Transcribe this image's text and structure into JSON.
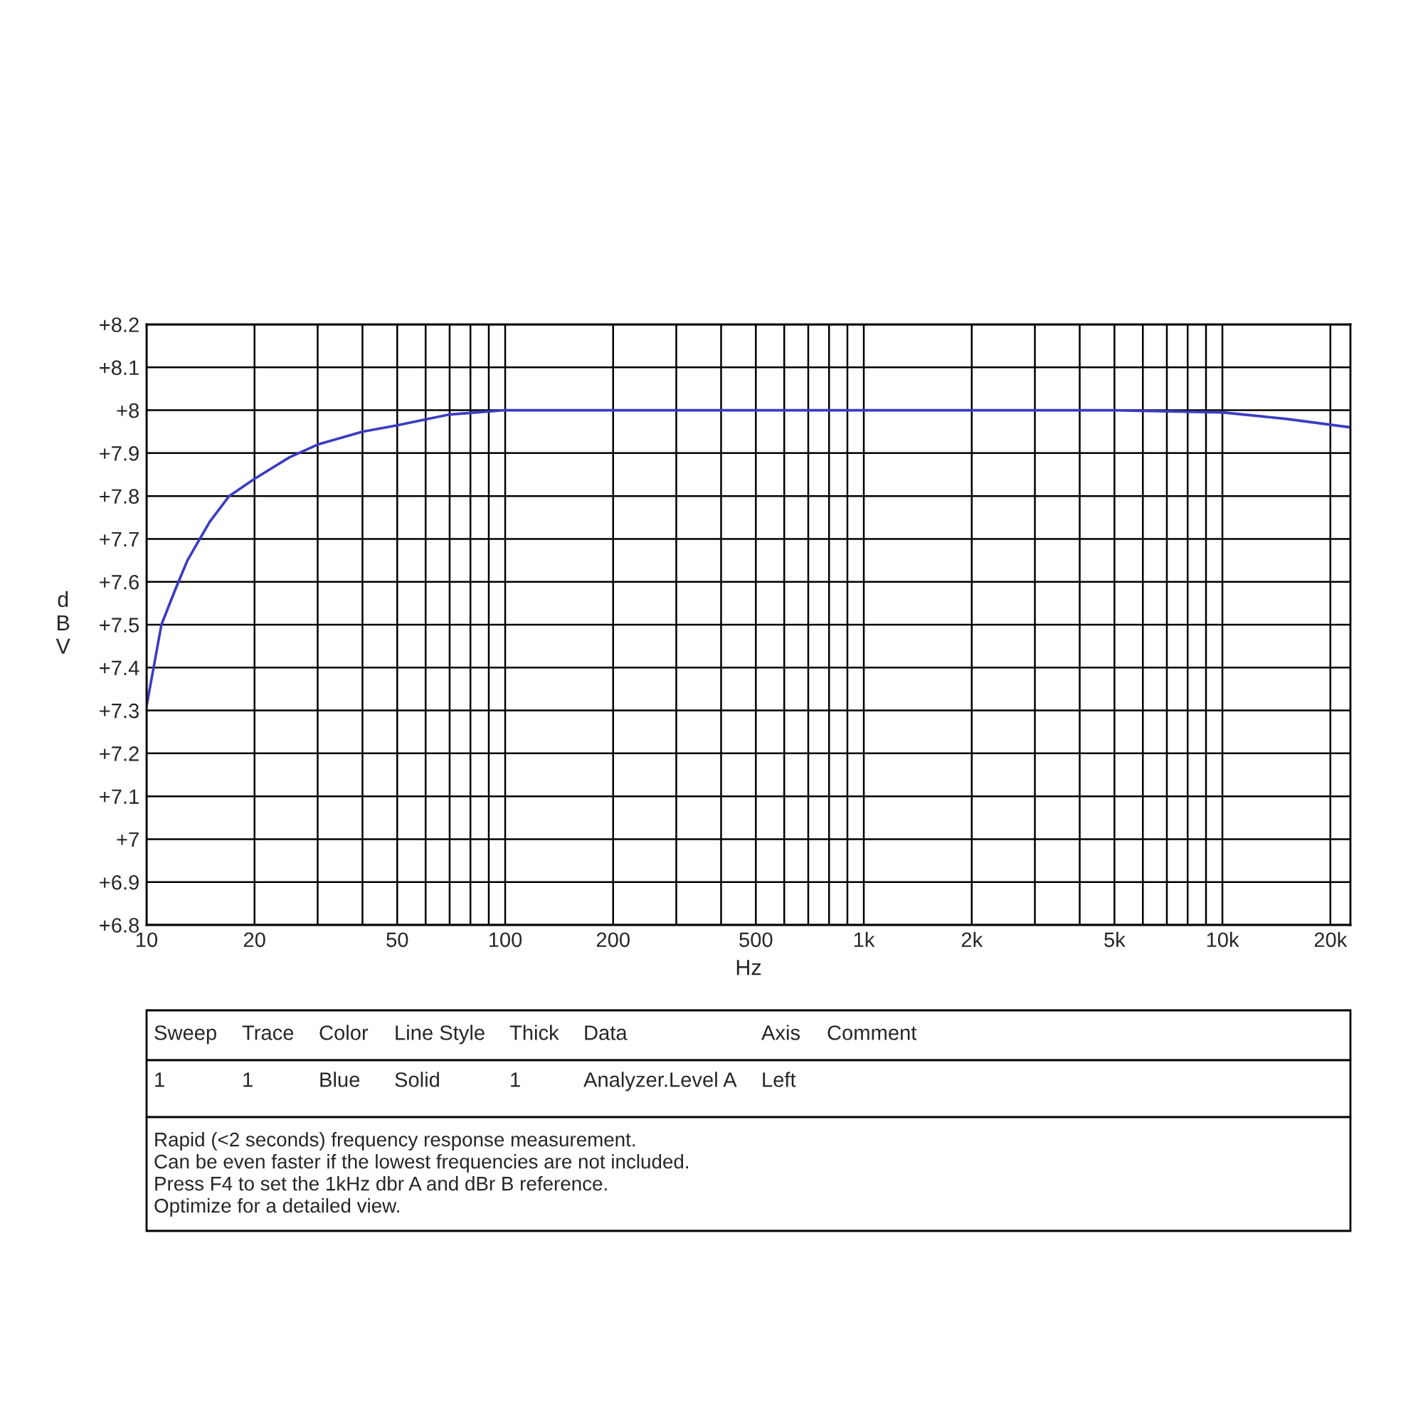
{
  "chart_data": {
    "type": "line",
    "xlabel": "Hz",
    "ylabel": "dBV",
    "log": "x",
    "grid": true,
    "marker": "none",
    "line_style": "solid",
    "xlim": [
      10,
      22750
    ],
    "ylim": [
      6.8,
      8.2
    ],
    "xticks": [
      10,
      20,
      {
        "value": 30,
        "label": null
      },
      {
        "value": 40,
        "label": null
      },
      50,
      {
        "value": 60,
        "label": null
      },
      {
        "value": 70,
        "label": null
      },
      {
        "value": 80,
        "label": null
      },
      {
        "value": 90,
        "label": null
      },
      100,
      200,
      {
        "value": 300,
        "label": null
      },
      {
        "value": 400,
        "label": null
      },
      500,
      {
        "value": 600,
        "label": null
      },
      {
        "value": 700,
        "label": null
      },
      {
        "value": 800,
        "label": null
      },
      {
        "value": 900,
        "label": null
      },
      {
        "value": 1000,
        "label": "1k"
      },
      {
        "value": 2000,
        "label": "2k"
      },
      {
        "value": 3000,
        "label": null
      },
      {
        "value": 4000,
        "label": null
      },
      {
        "value": 5000,
        "label": "5k"
      },
      {
        "value": 6000,
        "label": null
      },
      {
        "value": 7000,
        "label": null
      },
      {
        "value": 8000,
        "label": null
      },
      {
        "value": 9000,
        "label": null
      },
      {
        "value": 10000,
        "label": "10k"
      },
      {
        "value": 20000,
        "label": "20k"
      }
    ],
    "yticks": [
      {
        "value": 6.8,
        "label": "+6.8"
      },
      {
        "value": 6.9,
        "label": "+6.9"
      },
      {
        "value": 7,
        "label": "+7"
      },
      {
        "value": 7.1,
        "label": "+7.1"
      },
      {
        "value": 7.2,
        "label": "+7.2"
      },
      {
        "value": 7.3,
        "label": "+7.3"
      },
      {
        "value": 7.4,
        "label": "+7.4"
      },
      {
        "value": 7.5,
        "label": "+7.5"
      },
      {
        "value": 7.6,
        "label": "+7.6"
      },
      {
        "value": 7.7,
        "label": "+7.7"
      },
      {
        "value": 7.8,
        "label": "+7.8"
      },
      {
        "value": 7.9,
        "label": "+7.9"
      },
      {
        "value": 8,
        "label": "+8"
      },
      {
        "value": 8.1,
        "label": "+8.1"
      },
      {
        "value": 8.2,
        "label": "+8.2"
      }
    ],
    "series": [
      {
        "color": "#3b3bc0",
        "x": [
          10,
          11,
          12,
          13,
          15,
          17,
          20,
          25,
          30,
          40,
          50,
          70,
          100,
          200,
          500,
          1000,
          2000,
          5000,
          10000,
          15000,
          22750
        ],
        "values": [
          7.31,
          7.5,
          7.58,
          7.65,
          7.74,
          7.8,
          7.84,
          7.89,
          7.92,
          7.95,
          7.965,
          7.99,
          8.0,
          8.0,
          8.0,
          8.0,
          8.0,
          8.0,
          7.995,
          7.98,
          7.96
        ]
      }
    ],
    "annotations": [
      "Sweep",
      "Trace",
      "Color",
      "Line Style",
      "Thick",
      "Data",
      "Axis",
      "Comment",
      "1",
      "1",
      "Blue",
      "Solid",
      "1",
      "Analyzer.Level A",
      "Left",
      "Rapid (<2 seconds) frequency response measurement.",
      "Can be even faster if the lowest frequencies are not included.",
      "Press F4 to set the 1kHz dbr A and dBr B reference.",
      "Optimize for a detailed view."
    ]
  }
}
